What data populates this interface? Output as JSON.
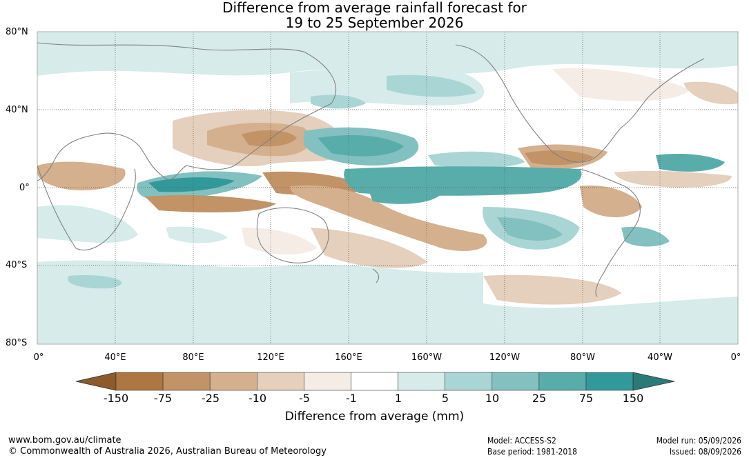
{
  "title": {
    "line1": "Difference from average rainfall forecast for",
    "line2": "19 to 25 September 2026"
  },
  "map": {
    "lat_labels": [
      "80°N",
      "40°N",
      "0°",
      "40°S",
      "80°S"
    ],
    "lon_labels": [
      "0°",
      "40°E",
      "80°E",
      "120°E",
      "160°E",
      "160°W",
      "120°W",
      "80°W",
      "40°W",
      "0°"
    ],
    "land_color": "#808080"
  },
  "colorbar": {
    "title": "Difference from average (mm)",
    "ticks": [
      "-150",
      "-75",
      "-25",
      "-10",
      "-5",
      "-1",
      "1",
      "5",
      "10",
      "25",
      "75",
      "150"
    ],
    "colors": [
      "#8c5a2b",
      "#ae7640",
      "#c19366",
      "#d4b08e",
      "#e5cfbd",
      "#f5ece6",
      "#ffffff",
      "#d6ebea",
      "#a9d6d5",
      "#82c1c0",
      "#58adab",
      "#32999a",
      "#2a7a78"
    ]
  },
  "footer": {
    "website": "www.bom.gov.au/climate",
    "copyright": "© Commonwealth of Australia 2026, Australian Bureau of Meteorology",
    "model": "Model: ACCESS-S2",
    "base_period": "Base period: 1981-2018",
    "model_run": "Model run: 05/09/2026",
    "issued": "Issued: 08/09/2026"
  }
}
